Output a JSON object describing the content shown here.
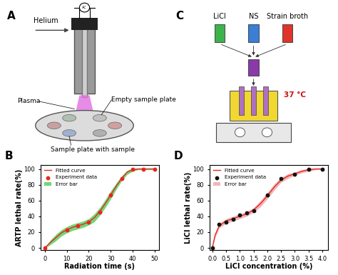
{
  "diagrams": [
    {
      "panel": "A",
      "gas": "Helium",
      "power": "AC",
      "labels": {
        "plasma": "Plasma",
        "empty_plate": "Empty sample plate",
        "sample_plate": "Sample plate with sample"
      }
    },
    {
      "panel": "C",
      "tubes": [
        {
          "name": "LiCl",
          "color": "#3cb44b"
        },
        {
          "name": "NS",
          "color": "#3a7fd5"
        },
        {
          "name": "Strain broth",
          "color": "#e0342a"
        }
      ],
      "temperature": "37 °C"
    }
  ],
  "chart_data": [
    {
      "type": "line",
      "title": "B",
      "x_label": "Radiation time (s)",
      "y_label": "ARTP lethal rate(%)",
      "xlim": [
        -2,
        52
      ],
      "ylim": [
        -3,
        105
      ],
      "xticks": [
        0,
        10,
        20,
        30,
        40,
        50
      ],
      "yticks": [
        0,
        20,
        40,
        60,
        80,
        100
      ],
      "legend": "upper left",
      "series": [
        {
          "name": "Fitted curve",
          "type": "line",
          "color": "#e8251f",
          "x": [
            0,
            2.5,
            5,
            7.5,
            10,
            12.5,
            15,
            17.5,
            20,
            22.5,
            25,
            27.5,
            30,
            32.5,
            35,
            37.5,
            40,
            42.5,
            45,
            47.5,
            50
          ],
          "values": [
            0,
            7,
            13,
            19,
            23,
            26,
            28,
            30,
            33,
            38,
            46,
            56,
            67,
            78,
            88,
            96,
            99,
            100,
            100,
            100,
            100
          ]
        },
        {
          "name": "Experiment data",
          "type": "scatter",
          "color": "#e8251f",
          "marker": "circle",
          "x": [
            0,
            10,
            15,
            20,
            25,
            30,
            35,
            40,
            45,
            50
          ],
          "values": [
            0,
            23,
            28,
            33,
            45,
            67,
            88,
            100,
            100,
            100
          ]
        },
        {
          "name": "Error bar",
          "type": "area",
          "color": "#3cc23c",
          "x": [
            0,
            2.5,
            5,
            7.5,
            10,
            12.5,
            15,
            17.5,
            20,
            22.5,
            25,
            27.5,
            30,
            32.5,
            35,
            37.5,
            40,
            42.5,
            45,
            47.5,
            50
          ],
          "lower": [
            0,
            4,
            9,
            15,
            19,
            22,
            24,
            26,
            29,
            33,
            41,
            51,
            62,
            74,
            85,
            93,
            97,
            99,
            99,
            99,
            99
          ],
          "upper": [
            1,
            10,
            17,
            23,
            27,
            30,
            32,
            34,
            37,
            43,
            51,
            61,
            72,
            82,
            91,
            98,
            101,
            101,
            101,
            101,
            101
          ]
        }
      ]
    },
    {
      "type": "line",
      "title": "D",
      "x_label": "LiCl concentration (%)",
      "y_label": "LiCl lethal rate(%)",
      "xlim": [
        -0.1,
        4.2
      ],
      "ylim": [
        -3,
        105
      ],
      "xticks": [
        {
          "value": 0,
          "label": "0.0"
        },
        {
          "value": 0.5,
          "label": "0.5"
        },
        {
          "value": 1,
          "label": "1.0"
        },
        {
          "value": 1.5,
          "label": "1.5"
        },
        {
          "value": 2,
          "label": "2.0"
        },
        {
          "value": 2.5,
          "label": "2.5"
        },
        {
          "value": 3,
          "label": "3.0"
        },
        {
          "value": 3.5,
          "label": "3.5"
        },
        {
          "value": 4,
          "label": "4.0"
        }
      ],
      "yticks": [
        0,
        20,
        40,
        60,
        80,
        100
      ],
      "legend": "upper left",
      "series": [
        {
          "name": "Fitted curve",
          "type": "line",
          "color": "#e8251f",
          "x": [
            0,
            0.1,
            0.25,
            0.5,
            0.75,
            1.0,
            1.25,
            1.5,
            1.75,
            2.0,
            2.25,
            2.5,
            2.75,
            3.0,
            3.25,
            3.5,
            3.75,
            4.0
          ],
          "values": [
            0,
            16,
            28,
            34,
            37,
            40,
            43,
            48,
            56,
            66,
            77,
            86,
            91,
            94,
            97,
            99,
            100,
            100
          ]
        },
        {
          "name": "Experiment data",
          "type": "scatter",
          "color": "#111111",
          "marker": "circle",
          "x": [
            0,
            0.25,
            0.5,
            0.75,
            1.0,
            1.25,
            1.5,
            2.0,
            2.5,
            3.0,
            3.5,
            4.0
          ],
          "values": [
            0,
            30,
            33,
            36,
            42,
            44,
            47,
            67,
            88,
            93,
            100,
            100
          ]
        },
        {
          "name": "Error bar",
          "type": "area",
          "color": "#e89a9a",
          "x": [
            0,
            0.1,
            0.25,
            0.5,
            0.75,
            1.0,
            1.25,
            1.5,
            1.75,
            2.0,
            2.25,
            2.5,
            2.75,
            3.0,
            3.25,
            3.5,
            3.75,
            4.0
          ],
          "lower": [
            0,
            13,
            25,
            31,
            34,
            37,
            40,
            45,
            52,
            62,
            73,
            83,
            88,
            92,
            95,
            97,
            99,
            99
          ],
          "upper": [
            1,
            19,
            31,
            37,
            40,
            43,
            46,
            51,
            60,
            70,
            81,
            89,
            94,
            96,
            99,
            101,
            101,
            101
          ]
        }
      ]
    }
  ]
}
